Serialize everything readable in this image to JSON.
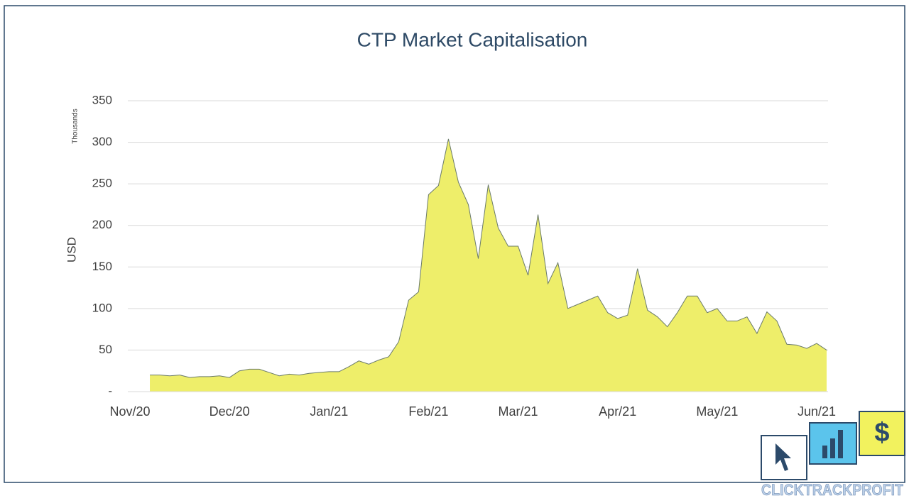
{
  "chart_data": {
    "type": "area",
    "title": "CTP Market Capitalisation",
    "y_label": "USD",
    "y_unit_label": "Thousands",
    "categories": [
      "Nov/20",
      null,
      null,
      null,
      null,
      null,
      null,
      null,
      null,
      null,
      "Dec/20",
      null,
      null,
      null,
      null,
      null,
      null,
      null,
      null,
      null,
      "Jan/21",
      null,
      null,
      null,
      null,
      null,
      null,
      null,
      null,
      null,
      "Feb/21",
      null,
      null,
      null,
      null,
      null,
      null,
      null,
      null,
      "Mar/21",
      null,
      null,
      null,
      null,
      null,
      null,
      null,
      null,
      null,
      "Apr/21",
      null,
      null,
      null,
      null,
      null,
      null,
      null,
      null,
      null,
      "May/21",
      null,
      null,
      null,
      null,
      null,
      null,
      null,
      null,
      null,
      "Jun/21",
      null
    ],
    "values": [
      null,
      null,
      20,
      20,
      19,
      20,
      17,
      18,
      18,
      19,
      17,
      25,
      27,
      27,
      23,
      19,
      21,
      20,
      22,
      23,
      24,
      24,
      30,
      37,
      33,
      38,
      42,
      60,
      110,
      120,
      237,
      248,
      304,
      252,
      225,
      160,
      249,
      197,
      175,
      175,
      140,
      213,
      130,
      155,
      100,
      105,
      110,
      115,
      95,
      88,
      92,
      148,
      98,
      90,
      78,
      95,
      115,
      115,
      95,
      100,
      85,
      85,
      90,
      70,
      96,
      85,
      57,
      56,
      52,
      58,
      50
    ],
    "color": "#eeee6a",
    "line_color": "#6a7a6a",
    "ylim": [
      0,
      350
    ],
    "yticks": [
      {
        "value": 0,
        "label": "-"
      },
      50,
      100,
      150,
      200,
      250,
      300,
      350
    ],
    "grid": true
  },
  "logo": {
    "text": "CLICKTRACKPROFIT"
  }
}
